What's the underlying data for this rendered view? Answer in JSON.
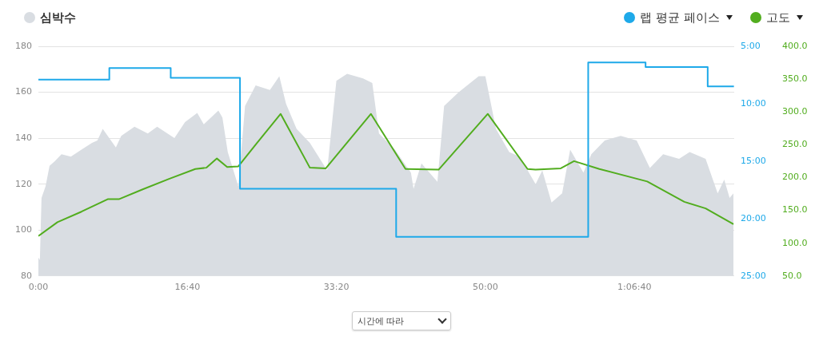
{
  "chart_data": {
    "type": "line",
    "legend": "top",
    "grid": "y",
    "marker": "none",
    "xlim": [
      0,
      4670
    ],
    "xticks": [
      {
        "value": 0,
        "label": "0:00"
      },
      {
        "value": 1000,
        "label": "16:40"
      },
      {
        "value": 2000,
        "label": "33:20"
      },
      {
        "value": 3000,
        "label": "50:00"
      },
      {
        "value": 4000,
        "label": "1:06:40"
      }
    ],
    "ylim": [
      80,
      180
    ],
    "yticks": [
      80,
      100,
      120,
      140,
      160,
      180
    ],
    "y2lim": [
      25,
      5
    ],
    "y2ticks": [
      {
        "value": 5,
        "label": "5:00"
      },
      {
        "value": 10,
        "label": "10:00"
      },
      {
        "value": 15,
        "label": "15:00"
      },
      {
        "value": 20,
        "label": "20:00"
      },
      {
        "value": 25,
        "label": "25:00"
      }
    ],
    "y3lim": [
      50,
      400
    ],
    "y3ticks": [
      {
        "value": 50,
        "label": "50.0"
      },
      {
        "value": 100,
        "label": "100.0"
      },
      {
        "value": 150,
        "label": "150.0"
      },
      {
        "value": 200,
        "label": "200.0"
      },
      {
        "value": 250,
        "label": "250.0"
      },
      {
        "value": 300,
        "label": "300.0"
      },
      {
        "value": 350,
        "label": "350.0"
      },
      {
        "value": 400,
        "label": "400.0"
      }
    ],
    "annotations": [
      "시간에 따라"
    ],
    "series": [
      {
        "name": "심박수",
        "type": "area",
        "color": "#d9dde2",
        "x": [
          0,
          10,
          21,
          48,
          75,
          110,
          155,
          218,
          289,
          360,
          396,
          432,
          520,
          556,
          645,
          734,
          797,
          913,
          984,
          1066,
          1110,
          1208,
          1235,
          1271,
          1342,
          1387,
          1458,
          1554,
          1617,
          1662,
          1733,
          1822,
          1938,
          2000,
          2072,
          2179,
          2241,
          2286,
          2393,
          2500,
          2518,
          2571,
          2678,
          2723,
          2821,
          2955,
          3000,
          3071,
          3160,
          3230,
          3337,
          3382,
          3444,
          3515,
          3569,
          3658,
          3711,
          3801,
          3908,
          4015,
          4104,
          4193,
          4300,
          4371,
          4478,
          4559,
          4603,
          4639,
          4665
        ],
        "values": [
          88,
          87,
          114,
          119,
          128,
          130,
          133,
          132,
          135,
          138,
          139,
          144,
          136,
          141,
          145,
          142,
          145,
          140,
          147,
          151,
          146,
          152,
          149,
          134,
          119,
          154,
          163,
          161,
          167,
          155,
          144,
          138,
          126,
          165,
          168,
          166,
          164,
          142,
          135,
          125,
          118,
          129,
          121,
          154,
          160,
          167,
          167,
          144,
          134,
          132,
          120,
          126,
          112,
          116,
          135,
          125,
          133,
          139,
          141,
          139,
          127,
          133,
          131,
          134,
          131,
          116,
          122,
          114,
          116
        ]
      },
      {
        "name": "랩 평균 페이스",
        "type": "step",
        "axis": "y2",
        "color": "#1ea9e9",
        "x": [
          0,
          476,
          888,
          1353,
          2401,
          3690,
          4075,
          4492,
          4668
        ],
        "values": [
          7.9,
          6.9,
          7.75,
          17.4,
          21.6,
          6.4,
          6.8,
          8.5,
          8.5
        ]
      },
      {
        "name": "고도",
        "type": "line",
        "axis": "y3",
        "color": "#52ad1f",
        "x": [
          0,
          128,
          289,
          465,
          540,
          700,
          877,
          1053,
          1128,
          1198,
          1267,
          1342,
          1465,
          1626,
          1822,
          1929,
          2232,
          2464,
          2686,
          3016,
          3283,
          3337,
          3506,
          3595,
          3765,
          4086,
          4335,
          4478,
          4665
        ],
        "values": [
          111,
          132,
          148,
          167,
          167,
          182,
          198,
          213,
          215,
          229,
          216,
          217,
          252,
          297,
          215,
          214,
          297,
          213,
          212,
          297,
          213,
          212,
          214,
          225,
          213,
          194,
          163,
          153,
          129
        ]
      }
    ]
  }
}
